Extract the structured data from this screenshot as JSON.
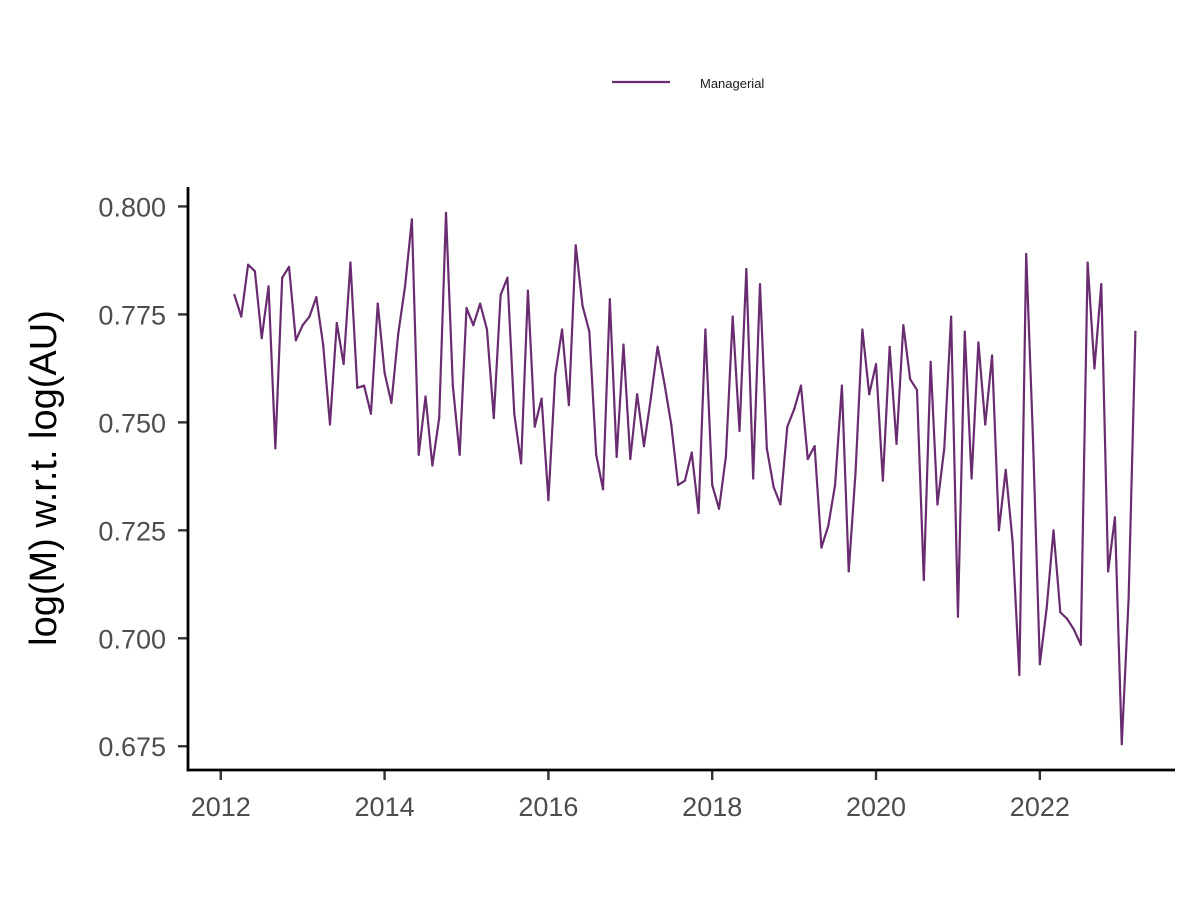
{
  "chart_data": {
    "type": "line",
    "title": "",
    "xlabel": "",
    "ylabel": "log(M) w.r.t. log(AU)",
    "xlim": [
      2011.6,
      2023.65
    ],
    "ylim": [
      0.6695,
      0.8045
    ],
    "x_ticks": [
      2012,
      2014,
      2016,
      2018,
      2020,
      2022
    ],
    "x_tick_labels": [
      "2012",
      "2014",
      "2016",
      "2018",
      "2020",
      "2022"
    ],
    "y_ticks": [
      0.675,
      0.7,
      0.725,
      0.75,
      0.775,
      0.8
    ],
    "y_tick_labels": [
      "0.675",
      "0.700",
      "0.725",
      "0.750",
      "0.775",
      "0.800"
    ],
    "grid": false,
    "legend_position": "top",
    "series": [
      {
        "name": "Managerial",
        "color": "#6a2c70",
        "start_year": 2012,
        "start_month": 3,
        "values": [
          0.7795,
          0.7745,
          0.7865,
          0.785,
          0.7695,
          0.7815,
          0.744,
          0.7835,
          0.786,
          0.769,
          0.7725,
          0.7745,
          0.779,
          0.768,
          0.7495,
          0.773,
          0.7635,
          0.787,
          0.758,
          0.7585,
          0.752,
          0.7775,
          0.7615,
          0.7545,
          0.7705,
          0.7815,
          0.797,
          0.7425,
          0.756,
          0.74,
          0.751,
          0.7985,
          0.7585,
          0.7425,
          0.7765,
          0.7725,
          0.7775,
          0.7715,
          0.751,
          0.7795,
          0.7835,
          0.752,
          0.7405,
          0.7805,
          0.749,
          0.7555,
          0.732,
          0.761,
          0.7715,
          0.754,
          0.791,
          0.777,
          0.771,
          0.7425,
          0.7345,
          0.7785,
          0.742,
          0.768,
          0.7415,
          0.7565,
          0.7445,
          0.7555,
          0.7675,
          0.759,
          0.7495,
          0.7355,
          0.7365,
          0.743,
          0.729,
          0.7715,
          0.7355,
          0.73,
          0.742,
          0.7745,
          0.748,
          0.7855,
          0.737,
          0.782,
          0.744,
          0.735,
          0.731,
          0.749,
          0.753,
          0.7585,
          0.7415,
          0.7445,
          0.721,
          0.726,
          0.7355,
          0.7585,
          0.7155,
          0.7385,
          0.7715,
          0.7565,
          0.7635,
          0.7365,
          0.7675,
          0.745,
          0.7725,
          0.76,
          0.7575,
          0.7135,
          0.764,
          0.731,
          0.744,
          0.7745,
          0.705,
          0.771,
          0.737,
          0.7685,
          0.7495,
          0.7655,
          0.725,
          0.739,
          0.7225,
          0.6915,
          0.789,
          0.746,
          0.694,
          0.707,
          0.725,
          0.706,
          0.7045,
          0.702,
          0.6985,
          0.787,
          0.7625,
          0.782,
          0.7155,
          0.728,
          0.6755,
          0.709,
          0.771
        ]
      }
    ]
  }
}
